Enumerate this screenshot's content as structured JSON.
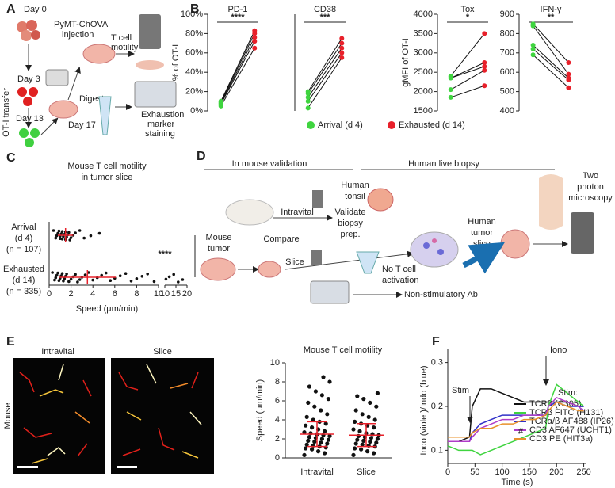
{
  "panel_a": {
    "label": "A",
    "day0": "Day 0",
    "injection": [
      "PyMT-ChOVA",
      "injection"
    ],
    "motility": [
      "T cell",
      "motility"
    ],
    "day3": "Day 3",
    "transfer": "OT-I transfer",
    "day13": "Day 13",
    "day17": "Day 17",
    "digest": "Digest",
    "staining": [
      "Exhaustion",
      "marker",
      "staining"
    ]
  },
  "panel_b": {
    "label": "B"
  },
  "panel_c": {
    "label": "C"
  },
  "panel_d": {
    "label": "D",
    "mouse_header": "In mouse validation",
    "human_header": "Human live biopsy",
    "microscopy": [
      "Two",
      "photon",
      "microscopy"
    ],
    "tonsil": [
      "Human",
      "tonsil"
    ],
    "intravital": "Intravital",
    "validate": [
      "Validate",
      "biopsy",
      "prep."
    ],
    "mouse_tumor": [
      "Mouse",
      "tumor"
    ],
    "compare": "Compare",
    "human_slice": [
      "Human",
      "tumor",
      "slice"
    ],
    "slice": "Slice",
    "no_activation": [
      "No T cell",
      "activation"
    ],
    "antibody": "Non-stimulatory Ab"
  },
  "panel_e": {
    "label": "E",
    "images": [
      "Intravital",
      "Slice"
    ],
    "row": "Mouse"
  },
  "panel_f": {
    "label": "F"
  },
  "chart_data": [
    {
      "type": "paired",
      "title": "PD-1",
      "ylabel": "% of OT-I",
      "ylim": [
        0,
        100
      ],
      "yticks": [
        {
          "value": 0,
          "label": "0%"
        },
        {
          "value": 20,
          "label": "20%"
        },
        {
          "value": 40,
          "label": "40%"
        },
        {
          "value": 60,
          "label": "60%"
        },
        {
          "value": 80,
          "label": "80%"
        },
        {
          "value": 100,
          "label": "100%"
        }
      ],
      "significance": "****",
      "series": [
        {
          "name": "Arrival (d 4)",
          "color": "#3fd43f",
          "values": [
            5,
            7,
            8,
            9,
            10
          ]
        },
        {
          "name": "Exhausted (d 14)",
          "color": "#e8202a",
          "values": [
            65,
            72,
            76,
            80,
            83
          ]
        }
      ]
    },
    {
      "type": "paired",
      "title": "CD38",
      "ylim": [
        0,
        100
      ],
      "significance": "***",
      "series": [
        {
          "color": "#3fd43f",
          "values": [
            3,
            10,
            14,
            18,
            20
          ]
        },
        {
          "color": "#e8202a",
          "values": [
            55,
            60,
            65,
            70,
            75
          ]
        }
      ]
    },
    {
      "type": "paired",
      "title": "Tox",
      "ylabel": "gMFI of OT-I",
      "ylim": [
        1500,
        4000
      ],
      "yticks": [
        1500,
        2000,
        2500,
        3000,
        3500,
        4000
      ],
      "significance": "*",
      "series": [
        {
          "color": "#3fd43f",
          "values": [
            1850,
            2050,
            2350,
            2350,
            2400
          ]
        },
        {
          "color": "#e8202a",
          "values": [
            2150,
            2550,
            2650,
            2750,
            3500
          ]
        }
      ]
    },
    {
      "type": "paired",
      "title": "IFN-γ",
      "ylim": [
        400,
        900
      ],
      "yticks": [
        400,
        500,
        600,
        700,
        800,
        900
      ],
      "significance": "**",
      "series": [
        {
          "color": "#3fd43f",
          "values": [
            690,
            720,
            740,
            840,
            850
          ]
        },
        {
          "color": "#e8202a",
          "values": [
            520,
            560,
            570,
            590,
            650
          ]
        }
      ]
    },
    {
      "type": "strip",
      "orientation": "horizontal",
      "title": [
        "Mouse T cell motility",
        "in tumor slice"
      ],
      "xlabel": "Speed (μm/min)",
      "categories": [
        "Arrival",
        "Exhausted"
      ],
      "category_notes": [
        [
          "(d 4)",
          "(n = 107)"
        ],
        [
          "(d 14)",
          "(n = 335)"
        ]
      ],
      "xlim_segments": [
        [
          0,
          10
        ],
        [
          10,
          20
        ]
      ],
      "xticks_segments": [
        [
          0,
          2,
          4,
          6,
          8,
          10
        ],
        [
          10,
          15,
          20
        ]
      ],
      "values": [
        [
          0.4,
          0.6,
          0.7,
          0.8,
          0.9,
          1.0,
          1.0,
          1.1,
          1.2,
          1.2,
          1.3,
          1.4,
          1.5,
          1.5,
          1.6,
          1.7,
          1.8,
          1.9,
          2.0,
          2.2,
          2.4,
          2.8,
          3.2,
          3.8,
          4.6
        ],
        [
          0.3,
          0.5,
          0.6,
          0.7,
          0.8,
          0.9,
          1.0,
          1.1,
          1.2,
          1.3,
          1.4,
          1.5,
          1.6,
          1.8,
          2.0,
          2.2,
          2.4,
          2.6,
          2.8,
          3.0,
          3.3,
          3.6,
          4.0,
          4.4,
          4.8,
          5.2,
          5.6,
          6.0,
          6.5,
          7.0,
          7.5,
          8.0,
          8.5,
          9.0,
          9.6,
          10.5,
          12,
          14,
          16,
          18
        ]
      ],
      "means": [
        1.5,
        3.5
      ],
      "sd": [
        0.7,
        2.6
      ],
      "significance": "****",
      "color": "#111111",
      "summary_color": "#e8202a"
    },
    {
      "type": "strip",
      "orientation": "vertical",
      "title": "Mouse T cell motility",
      "ylabel": "Speed (μm/min)",
      "categories": [
        "Intravital",
        "Slice"
      ],
      "ylim": [
        0,
        10
      ],
      "yticks": [
        0,
        2,
        4,
        6,
        8,
        10
      ],
      "values": [
        [
          0.3,
          0.5,
          0.7,
          0.9,
          1.0,
          1.1,
          1.2,
          1.3,
          1.4,
          1.5,
          1.6,
          1.7,
          1.8,
          1.9,
          2.0,
          2.1,
          2.2,
          2.3,
          2.4,
          2.5,
          2.6,
          2.7,
          2.8,
          3.0,
          3.2,
          3.4,
          3.6,
          3.8,
          4.0,
          4.3,
          4.6,
          5.0,
          5.4,
          5.8,
          6.2,
          6.6,
          7.0,
          7.5,
          8.0,
          8.5
        ],
        [
          0.3,
          0.5,
          0.7,
          0.9,
          1.0,
          1.2,
          1.3,
          1.4,
          1.5,
          1.6,
          1.7,
          1.8,
          1.9,
          2.0,
          2.1,
          2.2,
          2.3,
          2.4,
          2.5,
          2.6,
          2.8,
          3.0,
          3.2,
          3.4,
          3.6,
          3.8,
          4.0,
          4.3,
          4.6,
          5.0,
          5.4,
          5.8,
          6.2,
          6.5,
          6.8
        ]
      ],
      "means": [
        2.5,
        2.4
      ],
      "sd": [
        1.3,
        1.2
      ],
      "color": "#111111",
      "summary_color": "#e8202a"
    },
    {
      "type": "line",
      "xlabel": "Time (s)",
      "ylabel": "Indo (violet)/Indo (blue)",
      "x": [
        0,
        20,
        40,
        45,
        60,
        80,
        100,
        120,
        140,
        160,
        180,
        185,
        200,
        220,
        240,
        250
      ],
      "xlim": [
        0,
        255
      ],
      "xticks": [
        0,
        50,
        100,
        150,
        200,
        250
      ],
      "ylim": [
        0.07,
        0.33
      ],
      "yticks": [
        0.1,
        0.2,
        0.3
      ],
      "legend_title": "Stim:",
      "annotations": [
        "Stim",
        "Iono",
        "#"
      ],
      "series": [
        {
          "name": "TCRβ (C305)",
          "color": "#111111",
          "values": [
            0.12,
            0.12,
            0.13,
            0.2,
            0.24,
            0.24,
            0.23,
            0.22,
            0.21,
            0.21,
            0.21,
            0.21,
            0.21,
            0.21,
            0.2,
            0.2
          ]
        },
        {
          "name": "TCRβ FITC (H131)",
          "color": "#3fd43f",
          "values": [
            0.11,
            0.1,
            0.1,
            0.1,
            0.09,
            0.1,
            0.11,
            0.12,
            0.13,
            0.14,
            0.15,
            0.2,
            0.25,
            0.23,
            0.21,
            0.2
          ]
        },
        {
          "name": "TCRα/β AF488 (IP26)",
          "color": "#3030c8",
          "values": [
            0.12,
            0.12,
            0.12,
            0.14,
            0.16,
            0.17,
            0.18,
            0.18,
            0.18,
            0.18,
            0.18,
            0.2,
            0.21,
            0.2,
            0.2,
            0.2
          ]
        },
        {
          "name": "CD3 AF647 (UCHT1)",
          "color": "#b03cc8",
          "values": [
            0.12,
            0.12,
            0.12,
            0.13,
            0.15,
            0.16,
            0.17,
            0.17,
            0.18,
            0.18,
            0.18,
            0.2,
            0.22,
            0.21,
            0.2,
            0.19
          ]
        },
        {
          "name": "CD3 PE (HIT3a)",
          "color": "#e8902a",
          "values": [
            0.13,
            0.13,
            0.13,
            0.14,
            0.15,
            0.15,
            0.16,
            0.16,
            0.17,
            0.17,
            0.18,
            0.19,
            0.21,
            0.2,
            0.19,
            0.19
          ]
        }
      ]
    }
  ]
}
